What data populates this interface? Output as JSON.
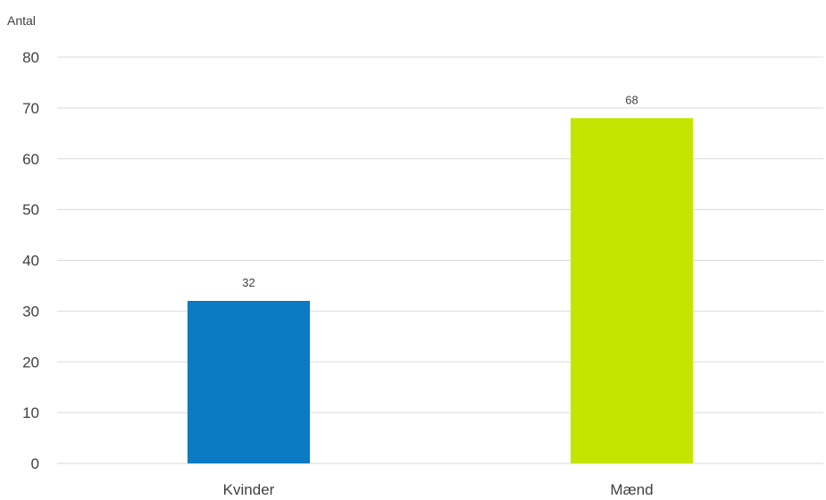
{
  "chart_data": {
    "type": "bar",
    "ylabel": "Antal",
    "xlabel": "",
    "ylim": [
      0,
      80
    ],
    "yticks": [
      0,
      10,
      20,
      30,
      40,
      50,
      60,
      70,
      80
    ],
    "grid": true,
    "categories": [
      "Kvinder",
      "Mænd"
    ],
    "values": [
      32,
      68
    ],
    "data_labels": [
      "32",
      "68"
    ],
    "colors": [
      "#0a7bc4",
      "#c3e500"
    ]
  }
}
